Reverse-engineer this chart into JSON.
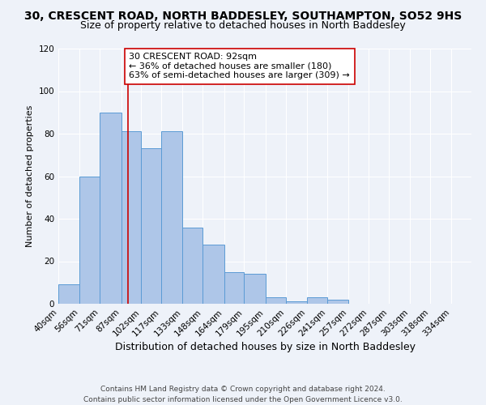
{
  "title": "30, CRESCENT ROAD, NORTH BADDESLEY, SOUTHAMPTON, SO52 9HS",
  "subtitle": "Size of property relative to detached houses in North Baddesley",
  "xlabel": "Distribution of detached houses by size in North Baddesley",
  "ylabel": "Number of detached properties",
  "bar_edges": [
    40,
    56,
    71,
    87,
    102,
    117,
    133,
    148,
    164,
    179,
    195,
    210,
    226,
    241,
    257,
    272,
    287,
    303,
    318,
    334,
    349
  ],
  "bar_heights": [
    9,
    60,
    90,
    81,
    73,
    81,
    36,
    28,
    15,
    14,
    3,
    1,
    3,
    2,
    0,
    0,
    0,
    0,
    0,
    0
  ],
  "bar_color": "#aec6e8",
  "bar_edge_color": "#5b9bd5",
  "ylim": [
    0,
    120
  ],
  "yticks": [
    0,
    20,
    40,
    60,
    80,
    100,
    120
  ],
  "vline_x": 92,
  "vline_color": "#cc0000",
  "annotation_text": "30 CRESCENT ROAD: 92sqm\n← 36% of detached houses are smaller (180)\n63% of semi-detached houses are larger (309) →",
  "annotation_box_color": "#ffffff",
  "annotation_box_edge": "#cc0000",
  "footer_line1": "Contains HM Land Registry data © Crown copyright and database right 2024.",
  "footer_line2": "Contains public sector information licensed under the Open Government Licence v3.0.",
  "background_color": "#eef2f9",
  "grid_color": "#ffffff",
  "title_fontsize": 10,
  "subtitle_fontsize": 9,
  "xlabel_fontsize": 9,
  "ylabel_fontsize": 8,
  "tick_label_size": 7.5,
  "annotation_fontsize": 8,
  "footer_fontsize": 6.5
}
